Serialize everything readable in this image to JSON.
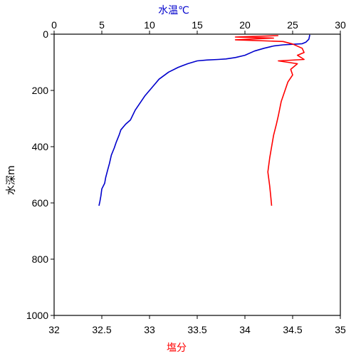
{
  "chart_data": {
    "type": "line",
    "axes": {
      "y": {
        "label": "水深m",
        "range": [
          0,
          1000
        ],
        "ticks": [
          0,
          200,
          400,
          600,
          800,
          1000
        ],
        "inverted": true
      },
      "x_top": {
        "label": "水温℃",
        "label_color": "#0000cc",
        "range": [
          0,
          30
        ],
        "ticks": [
          0,
          5,
          10,
          15,
          20,
          25,
          30
        ]
      },
      "x_bottom": {
        "label": "塩分",
        "label_color": "#ff0000",
        "range": [
          32,
          35
        ],
        "ticks": [
          32,
          32.5,
          33,
          33.5,
          34,
          34.5,
          35
        ],
        "tick_labels": [
          "32",
          "32.5",
          "33",
          "33.5",
          "34",
          "34.5",
          "35"
        ]
      }
    },
    "grid": false,
    "series": [
      {
        "axis": "x_top",
        "color": "#0000cc",
        "points": [
          [
            26.8,
            2
          ],
          [
            26.7,
            18
          ],
          [
            26.4,
            28
          ],
          [
            26.0,
            34
          ],
          [
            25.0,
            36
          ],
          [
            24.0,
            38
          ],
          [
            23.0,
            42
          ],
          [
            22.0,
            50
          ],
          [
            21.0,
            60
          ],
          [
            20.0,
            75
          ],
          [
            19.0,
            83
          ],
          [
            18.0,
            88
          ],
          [
            17.2,
            90
          ],
          [
            16.0,
            92
          ],
          [
            15.0,
            95
          ],
          [
            14.0,
            105
          ],
          [
            13.0,
            118
          ],
          [
            12.0,
            135
          ],
          [
            11.0,
            160
          ],
          [
            10.5,
            180
          ],
          [
            10.0,
            200
          ],
          [
            9.5,
            220
          ],
          [
            9.0,
            245
          ],
          [
            8.5,
            270
          ],
          [
            8.0,
            305
          ],
          [
            7.5,
            320
          ],
          [
            7.0,
            340
          ],
          [
            6.8,
            360
          ],
          [
            6.5,
            385
          ],
          [
            6.3,
            405
          ],
          [
            6.0,
            430
          ],
          [
            5.8,
            460
          ],
          [
            5.6,
            485
          ],
          [
            5.4,
            510
          ],
          [
            5.3,
            530
          ],
          [
            5.0,
            550
          ],
          [
            4.9,
            575
          ],
          [
            4.8,
            595
          ],
          [
            4.7,
            610
          ]
        ]
      },
      {
        "axis": "x_bottom",
        "color": "#ff0000",
        "points": [
          [
            34.35,
            5
          ],
          [
            33.9,
            10
          ],
          [
            34.3,
            14
          ],
          [
            33.9,
            20
          ],
          [
            34.4,
            26
          ],
          [
            34.5,
            35
          ],
          [
            34.6,
            50
          ],
          [
            34.62,
            65
          ],
          [
            34.55,
            75
          ],
          [
            34.62,
            90
          ],
          [
            34.35,
            95
          ],
          [
            34.55,
            105
          ],
          [
            34.48,
            125
          ],
          [
            34.5,
            145
          ],
          [
            34.45,
            170
          ],
          [
            34.42,
            200
          ],
          [
            34.38,
            240
          ],
          [
            34.35,
            290
          ],
          [
            34.33,
            320
          ],
          [
            34.3,
            360
          ],
          [
            34.28,
            400
          ],
          [
            34.26,
            440
          ],
          [
            34.24,
            490
          ],
          [
            34.26,
            540
          ],
          [
            34.27,
            575
          ],
          [
            34.28,
            610
          ]
        ]
      }
    ]
  }
}
